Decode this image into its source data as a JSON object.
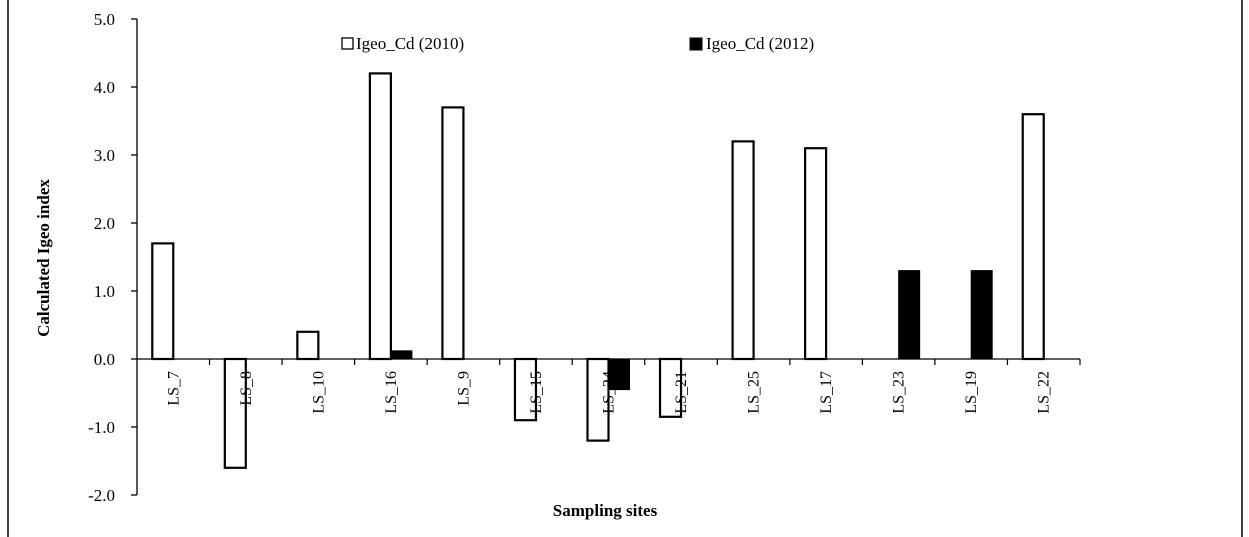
{
  "chart_data": {
    "type": "bar",
    "title": "",
    "xlabel": "Sampling sites",
    "ylabel": "Calculated Igeo index",
    "ylim": [
      -2.0,
      5.0
    ],
    "yticks": [
      "5.0",
      "4.0",
      "3.0",
      "2.0",
      "1.0",
      "0.0",
      "-1.0",
      "-2.0"
    ],
    "ytick_values": [
      5,
      4,
      3,
      2,
      1,
      0,
      -1,
      -2
    ],
    "categories": [
      "LS_7",
      "LS_8",
      "LS_10",
      "LS_16",
      "LS_9",
      "LS_15",
      "LS_24",
      "LS_21",
      "LS_25",
      "LS_17",
      "LS_23",
      "LS_19",
      "LS_22"
    ],
    "series": [
      {
        "name": "Igeo_Cd (2010)",
        "color": "#ffffff",
        "values": [
          1.7,
          -1.6,
          0.4,
          4.2,
          3.7,
          -0.9,
          -1.2,
          -0.85,
          3.2,
          3.1,
          0,
          0,
          3.6
        ]
      },
      {
        "name": "Igeo_Cd (2012)",
        "color": "#000000",
        "values": [
          0,
          0,
          0,
          0.12,
          0,
          0,
          -0.45,
          0,
          0,
          0,
          1.3,
          1.3,
          0
        ]
      }
    ],
    "legend_position": "top-center",
    "grid": false
  }
}
